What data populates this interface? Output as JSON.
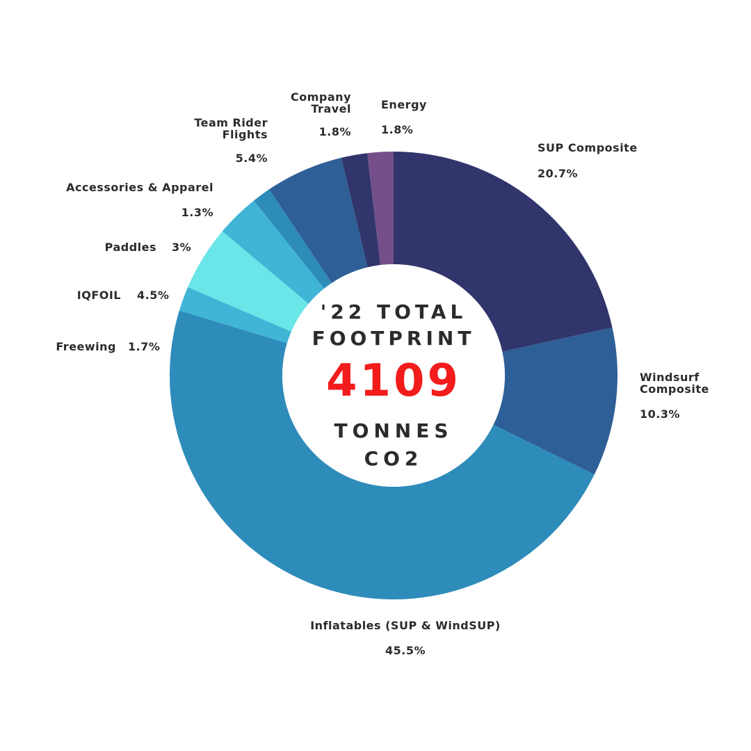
{
  "chart_data": {
    "type": "donut",
    "center_title": "'22 TOTAL FOOTPRINT",
    "center_value": "4109",
    "center_unit": "TONNES CO2",
    "categories": [
      "SUP Composite",
      "Windsurf Composite",
      "Inflatables (SUP & WindSUP)",
      "Freewing",
      "IQFOIL",
      "Paddles",
      "Accessories & Apparel",
      "Team Rider Flights",
      "Company Travel",
      "Energy"
    ],
    "values": [
      20.7,
      10.3,
      45.5,
      1.7,
      4.5,
      3,
      1.3,
      5.4,
      1.8,
      1.8
    ],
    "value_labels": [
      "20.7%",
      "10.3%",
      "45.5%",
      "1.7%",
      "4.5%",
      "3%",
      "1.3%",
      "5.4%",
      "1.8%",
      "1.8%"
    ],
    "colors": [
      "#31356b",
      "#2e5f97",
      "#2e8cba",
      "#40b5d6",
      "#6ae5e8",
      "#40b5d6",
      "#2e8cba",
      "#2e5f97",
      "#31356b",
      "#744f8a"
    ]
  }
}
